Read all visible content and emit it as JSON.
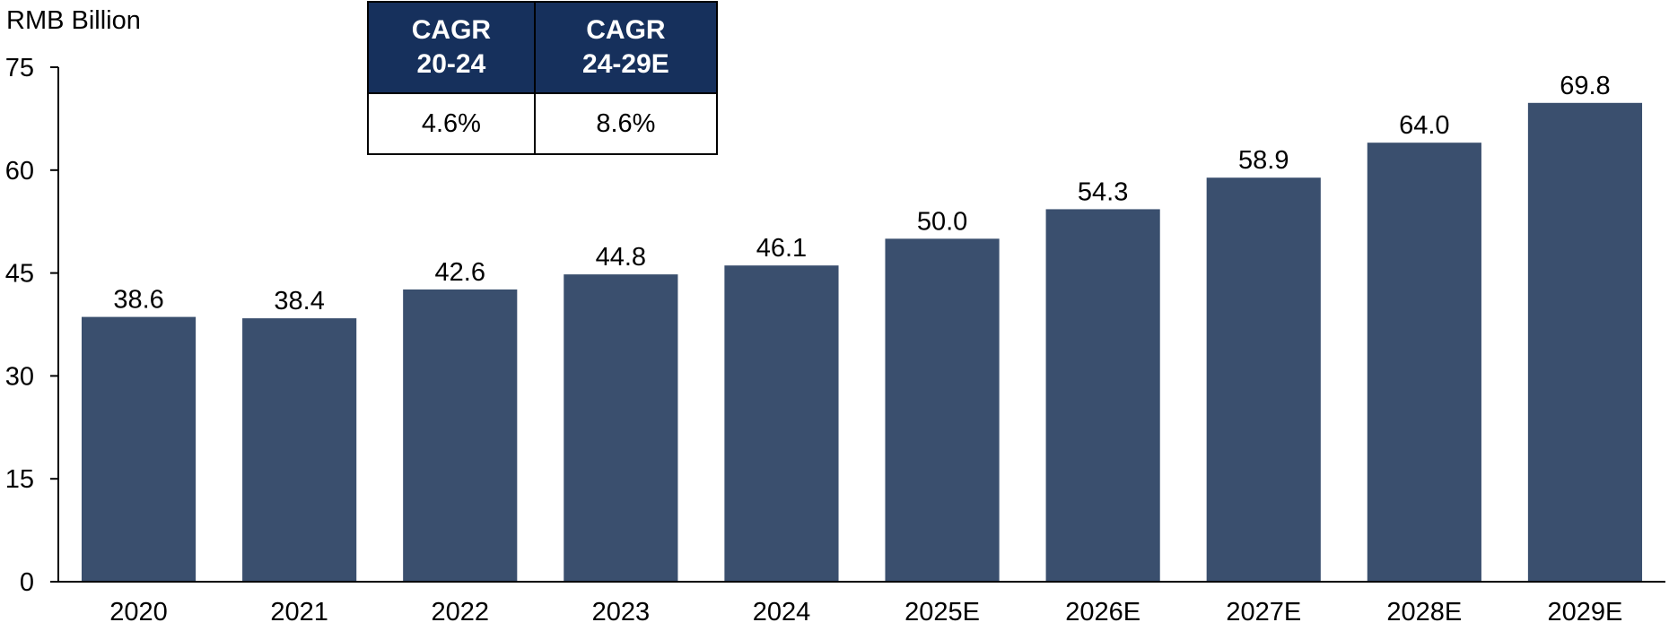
{
  "chart_data": {
    "type": "bar",
    "ylabel": "RMB Billion",
    "ylim": [
      0,
      75
    ],
    "yticks": [
      0,
      15,
      30,
      45,
      60,
      75
    ],
    "categories": [
      "2020",
      "2021",
      "2022",
      "2023",
      "2024",
      "2025E",
      "2026E",
      "2027E",
      "2028E",
      "2029E"
    ],
    "values": [
      38.6,
      38.4,
      42.6,
      44.8,
      46.1,
      50.0,
      54.3,
      58.9,
      64.0,
      69.8
    ],
    "value_labels": [
      "38.6",
      "38.4",
      "42.6",
      "44.8",
      "46.1",
      "50.0",
      "54.3",
      "58.9",
      "64.0",
      "69.8"
    ],
    "grid": false,
    "legend": "none",
    "bar_color": "#3A4F6E"
  },
  "cagr_table": {
    "header_color": "#16305C",
    "headers": [
      {
        "line1": "CAGR",
        "line2": "20-24"
      },
      {
        "line1": "CAGR",
        "line2": "24-29E"
      }
    ],
    "values": [
      "4.6%",
      "8.6%"
    ]
  }
}
